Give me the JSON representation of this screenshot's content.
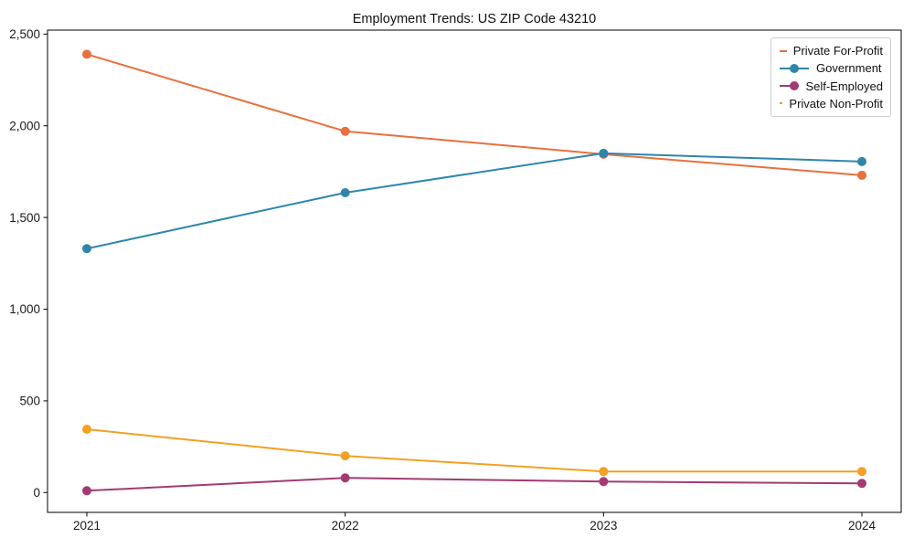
{
  "figure": {
    "background": "#ffffff",
    "spine_color": "#000000",
    "tick_color": "#1a1a1a",
    "legend_border_color": "#cccccc"
  },
  "chart_data": {
    "type": "line",
    "title": "Employment Trends: US ZIP Code 43210",
    "xlabel": "",
    "ylabel": "",
    "categories": [
      "2021",
      "2022",
      "2023",
      "2024"
    ],
    "x": [
      2021,
      2022,
      2023,
      2024
    ],
    "series": [
      {
        "name": "Private For-Profit",
        "color": "#E8703E",
        "values": [
          2390,
          1970,
          1845,
          1730
        ]
      },
      {
        "name": "Government",
        "color": "#2E86AB",
        "values": [
          1330,
          1635,
          1850,
          1805
        ]
      },
      {
        "name": "Self-Employed",
        "color": "#A23B72",
        "values": [
          10,
          80,
          60,
          50
        ]
      },
      {
        "name": "Private Non-Profit",
        "color": "#F2A124",
        "values": [
          345,
          200,
          115,
          115
        ]
      }
    ],
    "ylim": [
      0,
      2500
    ],
    "yticks": [
      0,
      500,
      1000,
      1500,
      2000,
      2500
    ],
    "ytick_labels": [
      "0",
      "500",
      "1,000",
      "1,500",
      "2,000",
      "2,500"
    ],
    "grid": false,
    "legend_position": "upper right",
    "marker": "circle",
    "legend_entries": [
      "Private For-Profit",
      "Government",
      "Self-Employed",
      "Private Non-Profit"
    ]
  }
}
